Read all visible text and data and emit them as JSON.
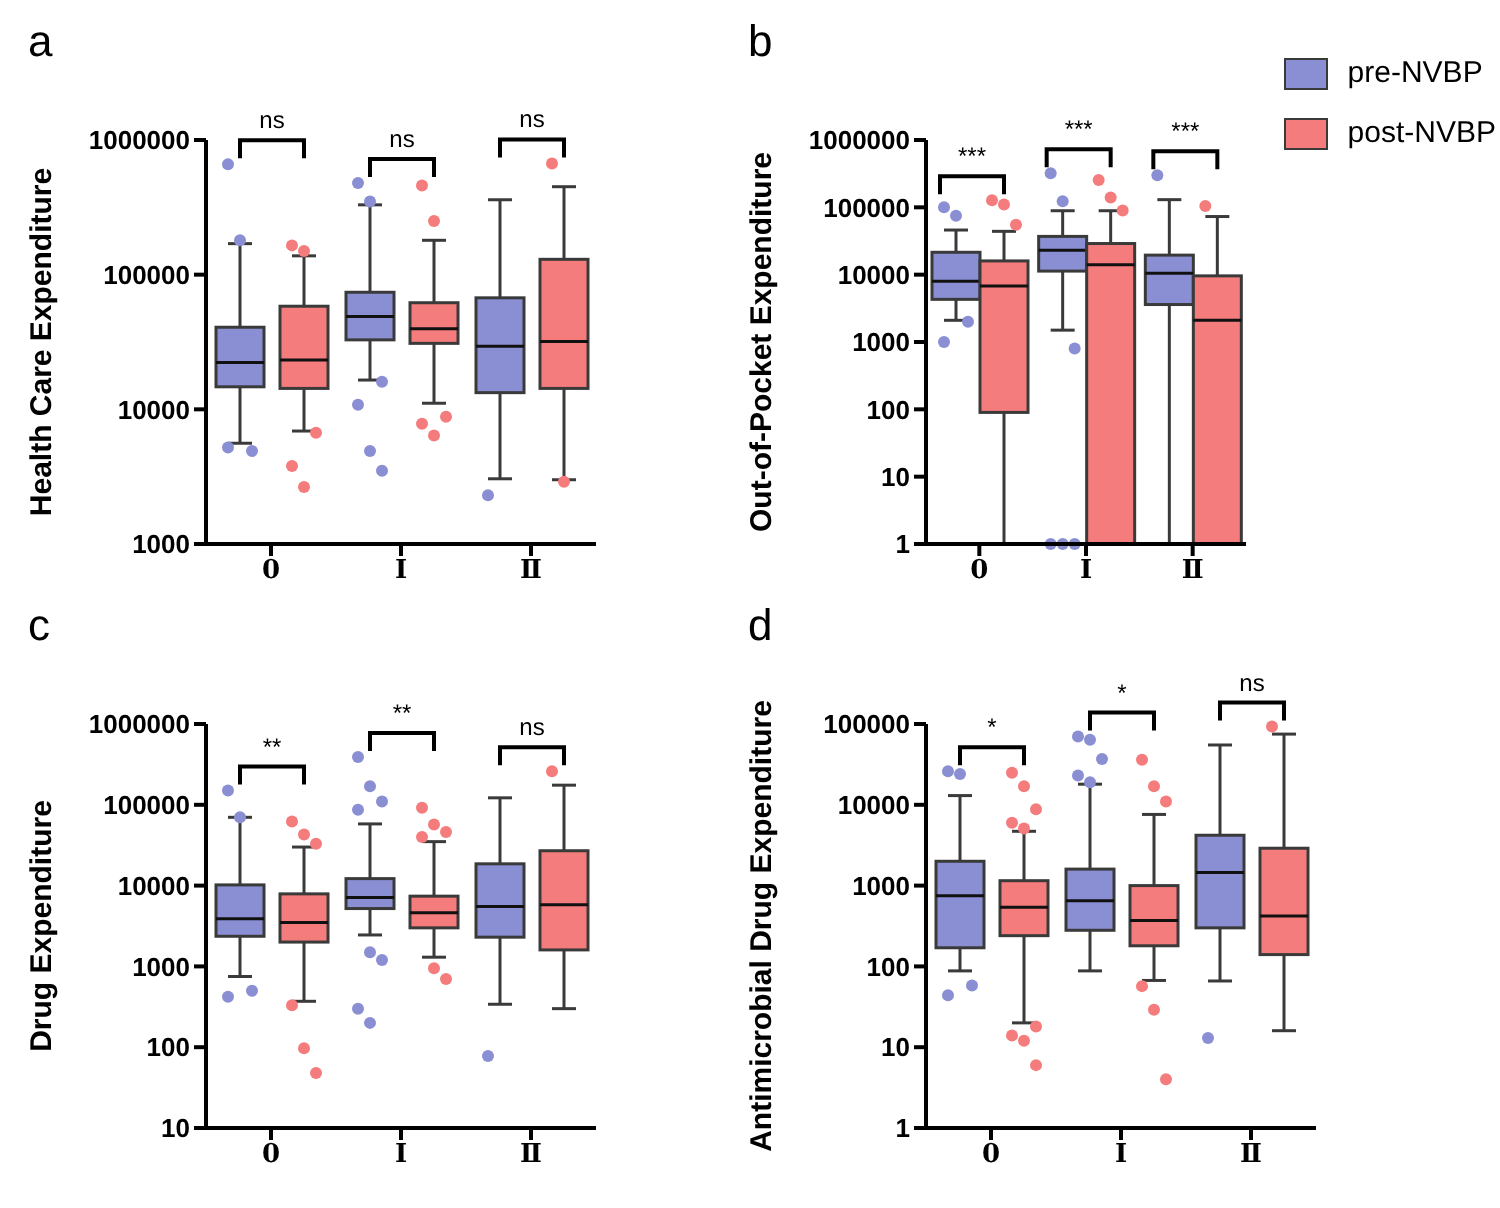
{
  "chart_data": [
    {
      "type": "box",
      "title": "a",
      "ylabel": "Health Care Expenditure",
      "categories": [
        "0",
        "Ⅰ",
        "Ⅱ"
      ],
      "log": "y",
      "ylim": [
        1000,
        1000000
      ],
      "yticks": [
        1000,
        10000,
        100000,
        1000000
      ],
      "legend": false,
      "annotations": [
        "ns",
        "ns",
        "ns"
      ],
      "series": [
        {
          "color": "#8a8fd4",
          "boxes": [
            {
              "low": 5600,
              "q1": 14700,
              "median": 22300,
              "q3": 40700,
              "high": 170000,
              "outliers": [
                660000,
                180000,
                4900,
                5200
              ]
            },
            {
              "low": 16500,
              "q1": 32800,
              "median": 49000,
              "q3": 74000,
              "high": 330000,
              "outliers": [
                480000,
                350000,
                16000,
                10800,
                4900,
                3500
              ]
            },
            {
              "low": 3050,
              "q1": 13300,
              "median": 29400,
              "q3": 67300,
              "high": 360000,
              "outliers": [
                2300
              ]
            }
          ]
        },
        {
          "color": "#f57c7c",
          "boxes": [
            {
              "low": 6900,
              "q1": 14300,
              "median": 23200,
              "q3": 58300,
              "high": 138000,
              "outliers": [
                165000,
                150000,
                6700,
                3800,
                2650
              ]
            },
            {
              "low": 11100,
              "q1": 30900,
              "median": 39700,
              "q3": 61900,
              "high": 180000,
              "outliers": [
                460000,
                250000,
                8800,
                7800,
                6400
              ]
            },
            {
              "low": 3000,
              "q1": 14300,
              "median": 31900,
              "q3": 130000,
              "high": 450000,
              "outliers": [
                670000,
                2900
              ]
            }
          ]
        }
      ]
    },
    {
      "type": "box",
      "title": "b",
      "ylabel": "Out-of-Pocket Expenditure",
      "categories": [
        "0",
        "Ⅰ",
        "Ⅱ"
      ],
      "log": "y",
      "ylim": [
        1,
        1000000
      ],
      "yticks": [
        1,
        10,
        100,
        1000,
        10000,
        100000,
        1000000
      ],
      "legend": "top right",
      "annotations": [
        "***",
        "***",
        "***"
      ],
      "series": [
        {
          "name": "pre-NVBP",
          "color": "#8a8fd4",
          "boxes": [
            {
              "low": 2100,
              "q1": 4300,
              "median": 8000,
              "q3": 21500,
              "high": 46000,
              "outliers": [
                100000,
                75000,
                2000,
                1000
              ]
            },
            {
              "low": 1500,
              "q1": 11300,
              "median": 23000,
              "q3": 37000,
              "high": 89000,
              "outliers": [
                320000,
                123000,
                800,
                1,
                1,
                1
              ]
            },
            {
              "low": 1,
              "q1": 3600,
              "median": 10500,
              "q3": 19500,
              "high": 130000,
              "outliers": [
                300000
              ]
            }
          ]
        },
        {
          "name": "post-NVBP",
          "color": "#f57c7c",
          "boxes": [
            {
              "low": 1,
              "q1": 90,
              "median": 6800,
              "q3": 16000,
              "high": 44000,
              "outliers": [
                127000,
                110000,
                55000
              ]
            },
            {
              "low": 1,
              "q1": 1,
              "median": 14000,
              "q3": 29000,
              "high": 89000,
              "outliers": [
                255000,
                140000,
                90000
              ]
            },
            {
              "low": 1,
              "q1": 1,
              "median": 2100,
              "q3": 9600,
              "high": 73000,
              "outliers": [
                105000
              ]
            }
          ]
        }
      ]
    },
    {
      "type": "box",
      "title": "c",
      "ylabel": "Drug Expenditure",
      "categories": [
        "0",
        "Ⅰ",
        "Ⅱ"
      ],
      "log": "y",
      "ylim": [
        10,
        1000000
      ],
      "yticks": [
        10,
        100,
        1000,
        10000,
        100000,
        1000000
      ],
      "legend": false,
      "annotations": [
        "**",
        "**",
        "ns"
      ],
      "series": [
        {
          "color": "#8a8fd4",
          "boxes": [
            {
              "low": 750,
              "q1": 2360,
              "median": 3900,
              "q3": 10200,
              "high": 70000,
              "outliers": [
                150000,
                70000,
                500,
                420
              ]
            },
            {
              "low": 2450,
              "q1": 5200,
              "median": 7100,
              "q3": 12200,
              "high": 58000,
              "outliers": [
                390000,
                170000,
                110000,
                87000,
                1500,
                1200,
                300,
                200
              ]
            },
            {
              "low": 340,
              "q1": 2300,
              "median": 5500,
              "q3": 18600,
              "high": 122000,
              "outliers": [
                78
              ]
            }
          ]
        },
        {
          "color": "#f57c7c",
          "boxes": [
            {
              "low": 370,
              "q1": 2000,
              "median": 3500,
              "q3": 7900,
              "high": 30000,
              "outliers": [
                62000,
                43000,
                33000,
                330,
                97,
                48
              ]
            },
            {
              "low": 1300,
              "q1": 3000,
              "median": 4600,
              "q3": 7400,
              "high": 35000,
              "outliers": [
                92000,
                57000,
                46000,
                40000,
                950,
                700
              ]
            },
            {
              "low": 300,
              "q1": 1600,
              "median": 5800,
              "q3": 27000,
              "high": 175000,
              "outliers": [
                260000
              ]
            }
          ]
        }
      ]
    },
    {
      "type": "box",
      "title": "d",
      "ylabel": "Antimicrobial Drug Expenditure",
      "categories": [
        "0",
        "Ⅰ",
        "Ⅱ"
      ],
      "log": "y",
      "ylim": [
        1,
        100000
      ],
      "yticks": [
        1,
        10,
        100,
        1000,
        10000,
        100000
      ],
      "legend": false,
      "annotations": [
        "*",
        "*",
        "ns"
      ],
      "series": [
        {
          "color": "#8a8fd4",
          "boxes": [
            {
              "low": 88,
              "q1": 170,
              "median": 750,
              "q3": 2000,
              "high": 13000,
              "outliers": [
                26000,
                24000,
                58,
                44
              ]
            },
            {
              "low": 88,
              "q1": 280,
              "median": 650,
              "q3": 1600,
              "high": 18000,
              "outliers": [
                70000,
                64000,
                37000,
                23000,
                19000
              ]
            },
            {
              "low": 66,
              "q1": 300,
              "median": 1450,
              "q3": 4200,
              "high": 55000,
              "outliers": [
                13
              ]
            }
          ]
        },
        {
          "color": "#f57c7c",
          "boxes": [
            {
              "low": 20,
              "q1": 240,
              "median": 540,
              "q3": 1150,
              "high": 4700,
              "outliers": [
                25000,
                17000,
                8800,
                6000,
                5100,
                18,
                14,
                12,
                6
              ]
            },
            {
              "low": 67,
              "q1": 180,
              "median": 370,
              "q3": 1000,
              "high": 7600,
              "outliers": [
                36000,
                17000,
                11000,
                57,
                29,
                4
              ]
            },
            {
              "low": 16,
              "q1": 140,
              "median": 420,
              "q3": 2900,
              "high": 75000,
              "outliers": [
                93000
              ]
            }
          ]
        }
      ]
    }
  ]
}
